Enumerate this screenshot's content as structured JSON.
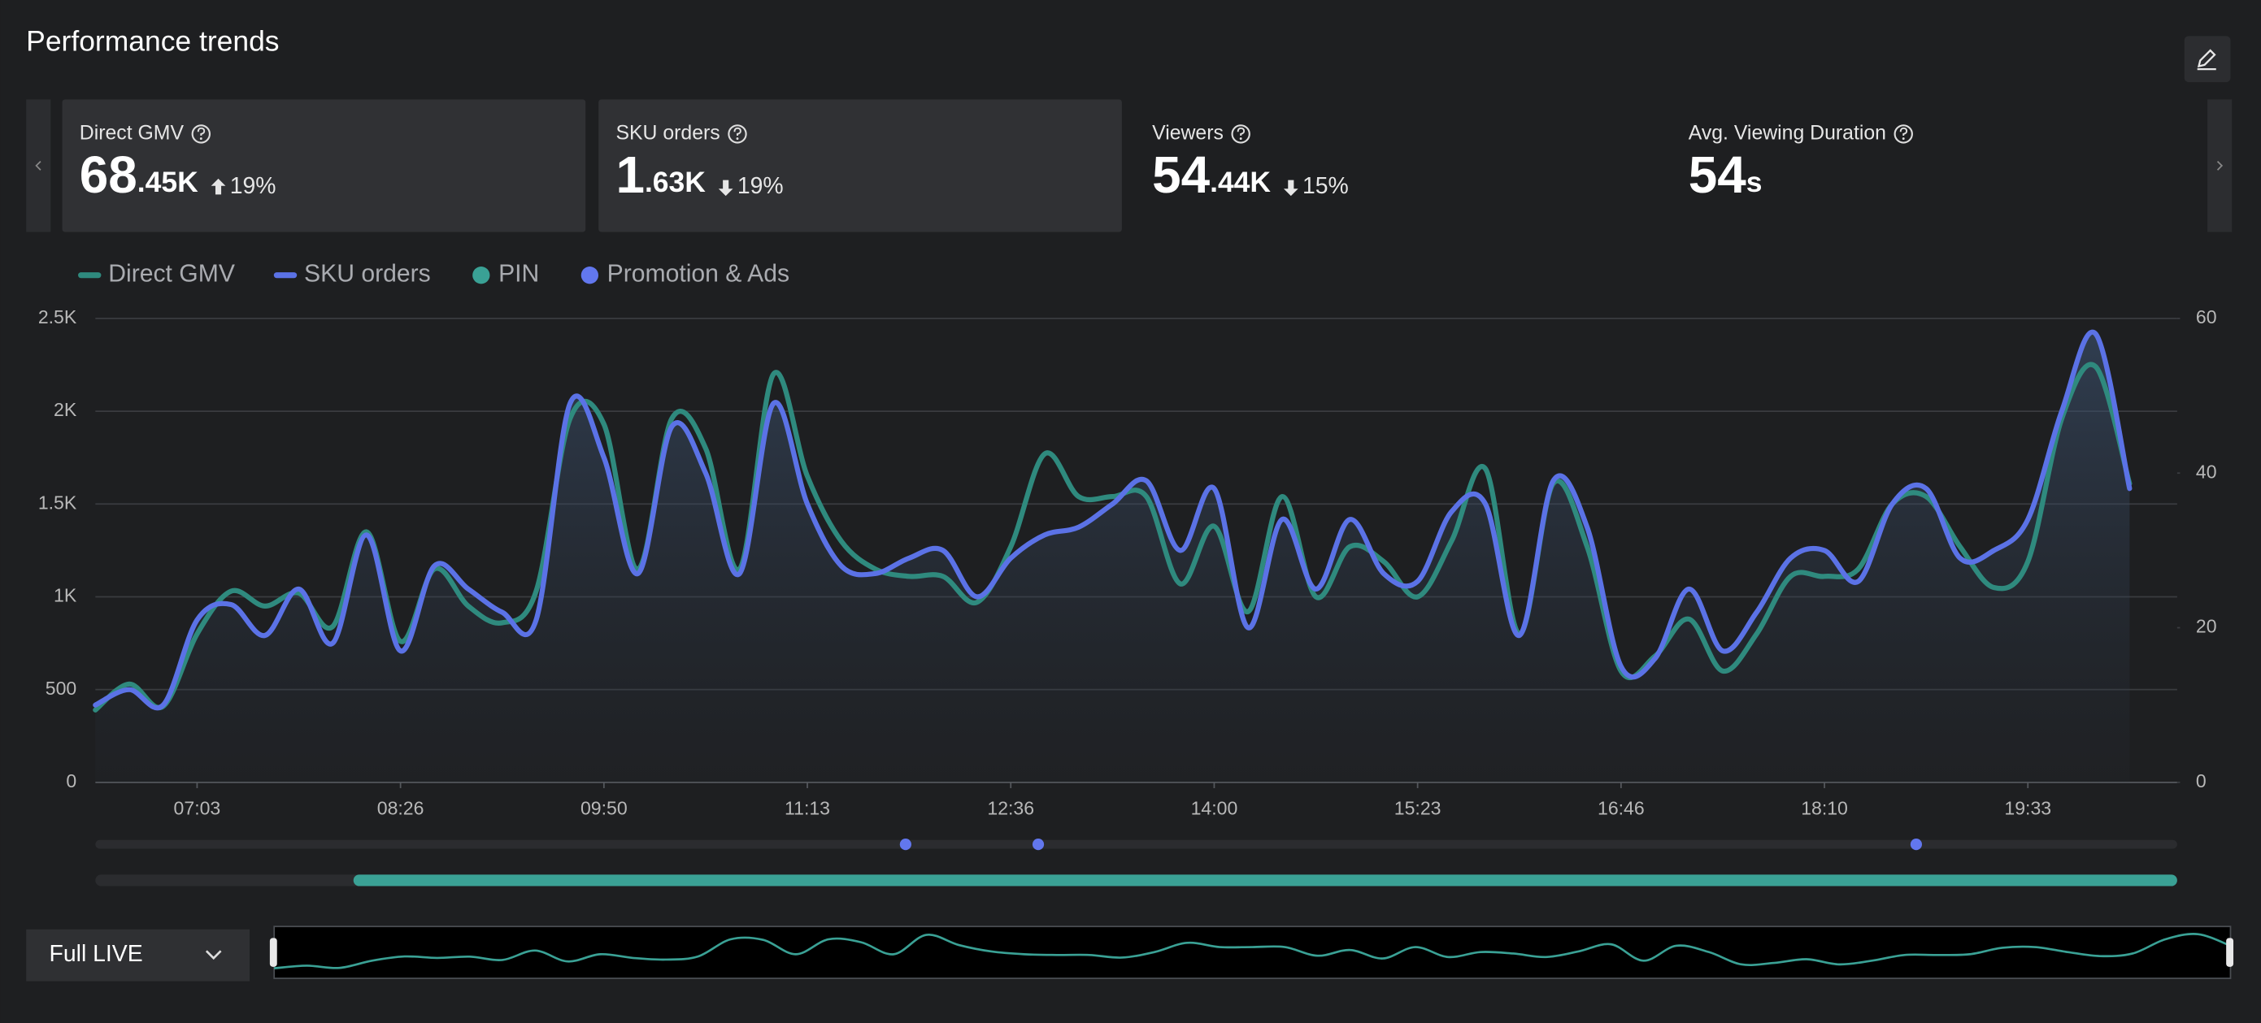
{
  "header": {
    "title": "Performance trends"
  },
  "cards": [
    {
      "label": "Direct GMV",
      "value_main": "68",
      "value_suffix": ".45K",
      "change": "19%",
      "direction": "up",
      "selected": true
    },
    {
      "label": "SKU orders",
      "value_main": "1",
      "value_suffix": ".63K",
      "change": "19%",
      "direction": "down",
      "selected": true
    },
    {
      "label": "Viewers",
      "value_main": "54",
      "value_suffix": ".44K",
      "change": "15%",
      "direction": "down",
      "selected": false
    },
    {
      "label": "Avg. Viewing Duration",
      "value_main": "54",
      "value_suffix": "s",
      "selected": false
    }
  ],
  "chart_data": {
    "type": "line",
    "categories": [
      null,
      null,
      null,
      "07:03",
      null,
      null,
      null,
      null,
      null,
      "08:26",
      null,
      null,
      null,
      null,
      null,
      "09:50",
      null,
      null,
      null,
      null,
      null,
      "11:13",
      null,
      null,
      null,
      null,
      null,
      "12:36",
      null,
      null,
      null,
      null,
      null,
      "14:00",
      null,
      null,
      null,
      null,
      null,
      "15:23",
      null,
      null,
      null,
      null,
      null,
      "16:46",
      null,
      null,
      null,
      null,
      null,
      "18:10",
      null,
      null,
      null,
      null,
      null,
      "19:33",
      null,
      null,
      null
    ],
    "series": [
      {
        "name": "Direct GMV",
        "color": "#2f8a7e",
        "values": [
          390,
          530,
          410,
          800,
          1030,
          950,
          1020,
          840,
          1350,
          760,
          1150,
          950,
          860,
          1030,
          1960,
          1930,
          1150,
          1960,
          1800,
          1150,
          2200,
          1650,
          1300,
          1150,
          1110,
          1110,
          970,
          1270,
          1770,
          1540,
          1540,
          1540,
          1070,
          1380,
          920,
          1540,
          1000,
          1270,
          1190,
          1000,
          1300,
          1690,
          800,
          1610,
          1270,
          600,
          680,
          880,
          600,
          800,
          1110,
          1110,
          1150,
          1500,
          1540,
          1270,
          1050,
          1190,
          1960,
          2240,
          1610
        ]
      },
      {
        "name": "SKU orders",
        "color": "#5b72e6",
        "axis": "y2",
        "values": [
          10,
          12,
          10,
          21,
          23,
          19,
          25,
          18,
          32,
          17,
          28,
          25,
          22,
          21,
          49,
          42,
          27,
          46,
          40,
          27,
          49,
          36,
          28,
          27,
          29,
          30,
          24,
          29,
          32,
          33,
          36,
          39,
          30,
          38,
          20,
          34,
          25,
          34,
          27,
          26,
          35,
          36,
          19,
          39,
          33,
          15,
          16,
          25,
          17,
          22,
          29,
          30,
          26,
          36,
          38,
          29,
          30,
          34,
          48,
          58,
          38
        ]
      }
    ],
    "markers": [
      {
        "name": "PIN",
        "color": "#3aa195"
      },
      {
        "name": "Promotion & Ads",
        "color": "#6277ee"
      }
    ],
    "ylim": [
      0,
      2500
    ],
    "yticks": [
      0,
      500,
      {
        "value": 1000,
        "label": "1K"
      },
      {
        "value": 1500,
        "label": "1.5K"
      },
      {
        "value": 2000,
        "label": "2K"
      },
      {
        "value": 2500,
        "label": "2.5K"
      }
    ],
    "y2lim": [
      0,
      60
    ],
    "y2ticks": [
      0,
      20,
      40,
      60
    ],
    "grid": true
  },
  "footer": {
    "range_select": "Full LIVE"
  }
}
